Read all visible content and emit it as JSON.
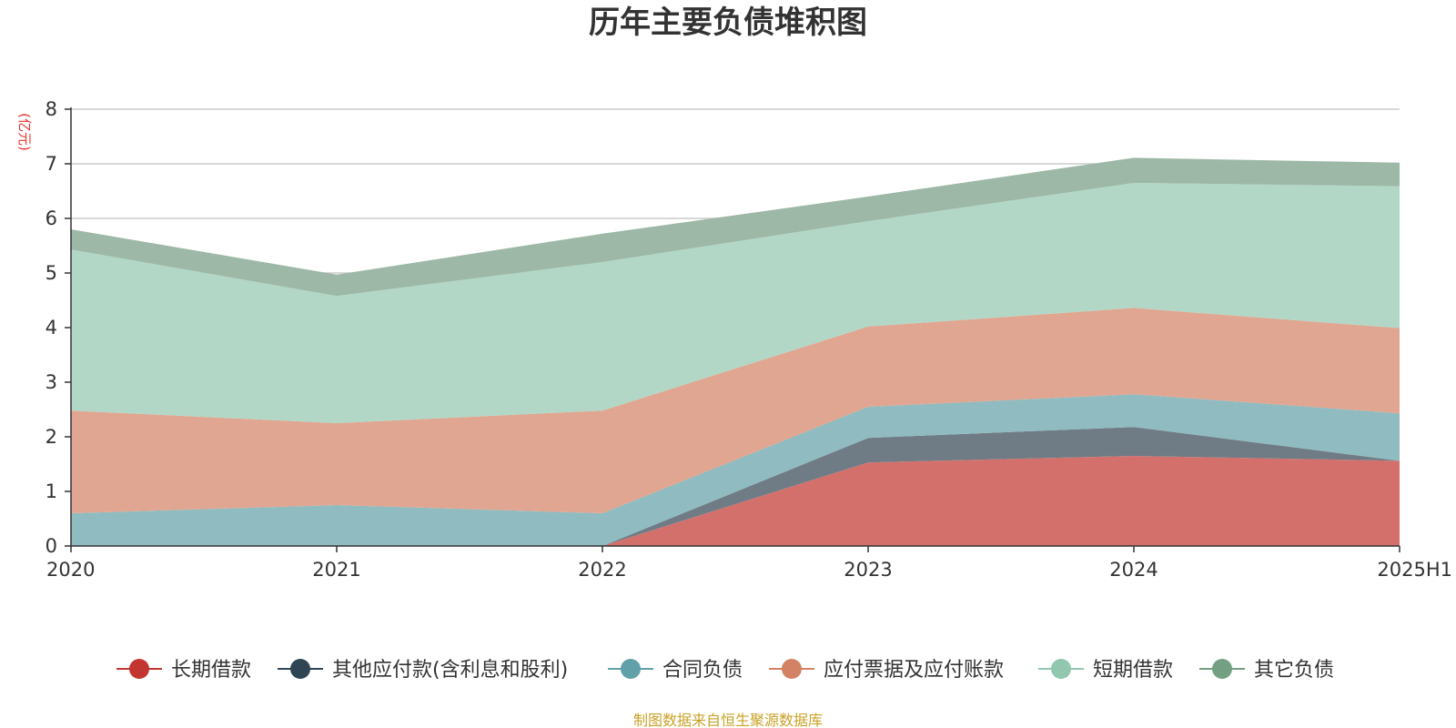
{
  "chart_data": {
    "type": "area",
    "stacked": true,
    "title": "历年主要负债堆积图",
    "ylabel": "(亿元)",
    "xlabel": "",
    "categories": [
      "2020",
      "2021",
      "2022",
      "2023",
      "2024",
      "2025H1"
    ],
    "ylim": [
      0,
      8
    ],
    "yticks": [
      0,
      1,
      2,
      3,
      4,
      5,
      6,
      7,
      8
    ],
    "grid": true,
    "legend_position": "bottom",
    "series": [
      {
        "name": "长期借款",
        "color": "#c23531",
        "fill": "#d4706c",
        "values": [
          0,
          0,
          0,
          1.53,
          1.65,
          1.56
        ]
      },
      {
        "name": "其他应付款(含利息和股利)",
        "color": "#2f4554",
        "fill": "#6f7c86",
        "values": [
          0,
          0,
          0,
          0.45,
          0.53,
          0.0
        ]
      },
      {
        "name": "合同负债",
        "color": "#61a0a8",
        "fill": "#90bbc0",
        "values": [
          0.6,
          0.75,
          0.6,
          0.57,
          0.6,
          0.87
        ]
      },
      {
        "name": "应付票据及应付账款",
        "color": "#d48265",
        "fill": "#e0a691",
        "values": [
          1.88,
          1.5,
          1.88,
          1.47,
          1.58,
          1.56
        ]
      },
      {
        "name": "短期借款",
        "color": "#91c7ae",
        "fill": "#b2d7c6",
        "values": [
          2.95,
          2.33,
          2.72,
          1.93,
          2.29,
          2.6
        ]
      },
      {
        "name": "其它负债",
        "color": "#749f83",
        "fill": "#9db8a6",
        "values": [
          0.37,
          0.39,
          0.52,
          0.45,
          0.46,
          0.43
        ]
      }
    ],
    "source_note": "制图数据来自恒生聚源数据库"
  }
}
